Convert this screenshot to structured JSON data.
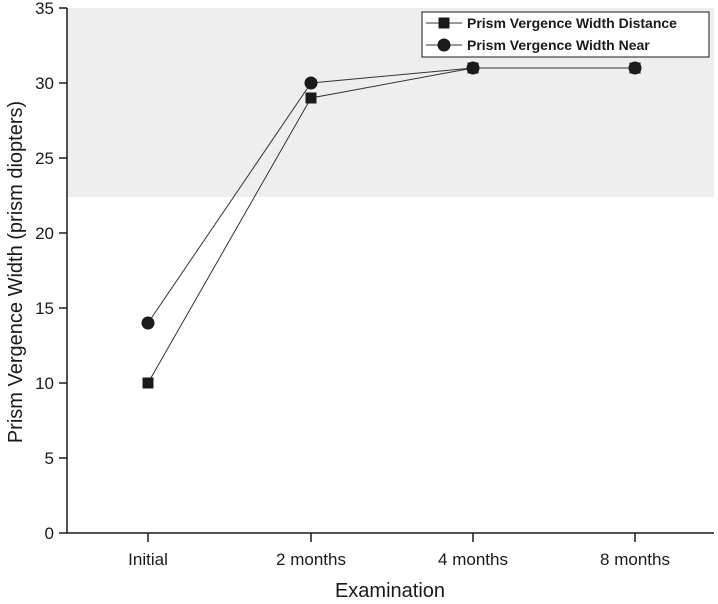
{
  "chart_data": {
    "type": "line",
    "title": "",
    "xlabel": "Examination",
    "ylabel": "Prism Vergence Width (prism diopters)",
    "categories": [
      "Initial",
      "2 months",
      "4 months",
      "8 months"
    ],
    "ylim": [
      0,
      35
    ],
    "yticks": [
      0,
      5,
      10,
      15,
      20,
      25,
      30,
      35
    ],
    "shaded_band": {
      "from": 22.4,
      "to": 35,
      "color": "#eeeeee"
    },
    "grid": false,
    "legend_position": "top-right",
    "series": [
      {
        "name": "Prism Vergence Width Distance",
        "marker": "square",
        "values": [
          10,
          29,
          31,
          31
        ]
      },
      {
        "name": "Prism Vergence Width Near",
        "marker": "circle",
        "values": [
          14,
          30,
          31,
          31
        ]
      }
    ],
    "colors": {
      "line": "#333333",
      "marker": "#1a1a1a",
      "axis": "#1a1a1a",
      "band": "#eeeeee"
    }
  }
}
